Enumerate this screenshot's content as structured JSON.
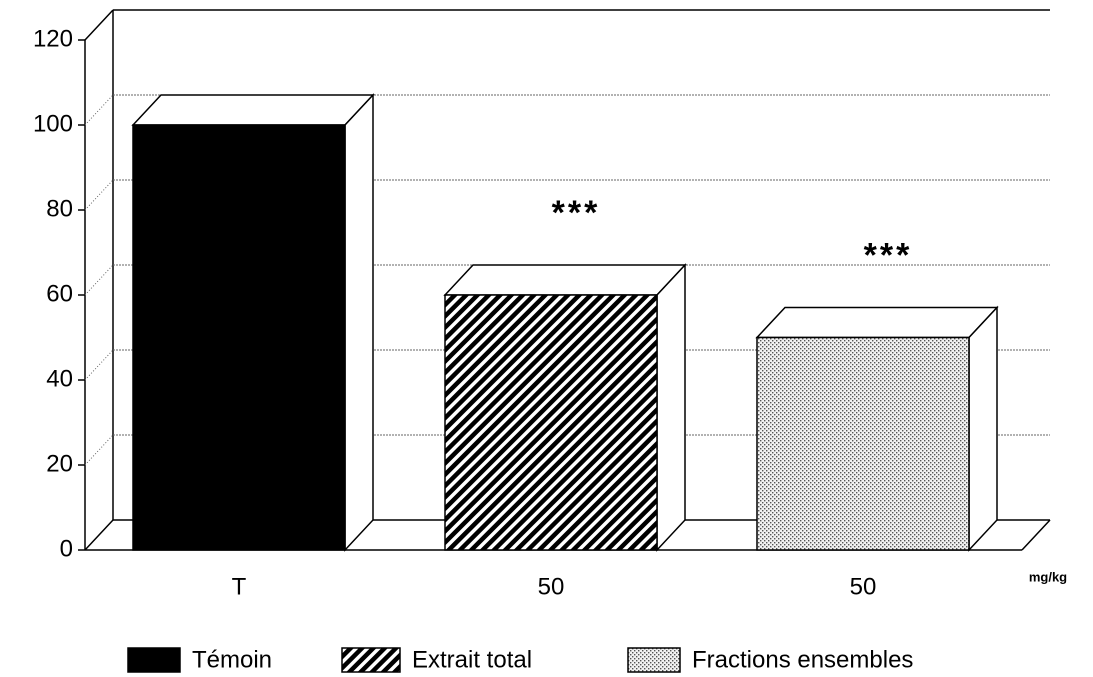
{
  "chart_data": {
    "type": "bar3d",
    "categories": [
      "T",
      "50",
      "50"
    ],
    "series": [
      {
        "name": "Témoin",
        "color": "#000000",
        "pattern": "solid",
        "values": [
          100,
          null,
          null
        ]
      },
      {
        "name": "Extrait total",
        "color": "#000000",
        "pattern": "hatch",
        "values": [
          null,
          60,
          null
        ]
      },
      {
        "name": "Fractions ensembles",
        "color": "#000000",
        "pattern": "dots",
        "values": [
          null,
          null,
          50
        ]
      }
    ],
    "ylim": [
      0,
      120
    ],
    "yticks": [
      0,
      20,
      40,
      60,
      80,
      100,
      120
    ],
    "grid": true,
    "x_unit": "mg/kg",
    "annotations": [
      "***",
      "***"
    ],
    "legend": "bottom"
  }
}
